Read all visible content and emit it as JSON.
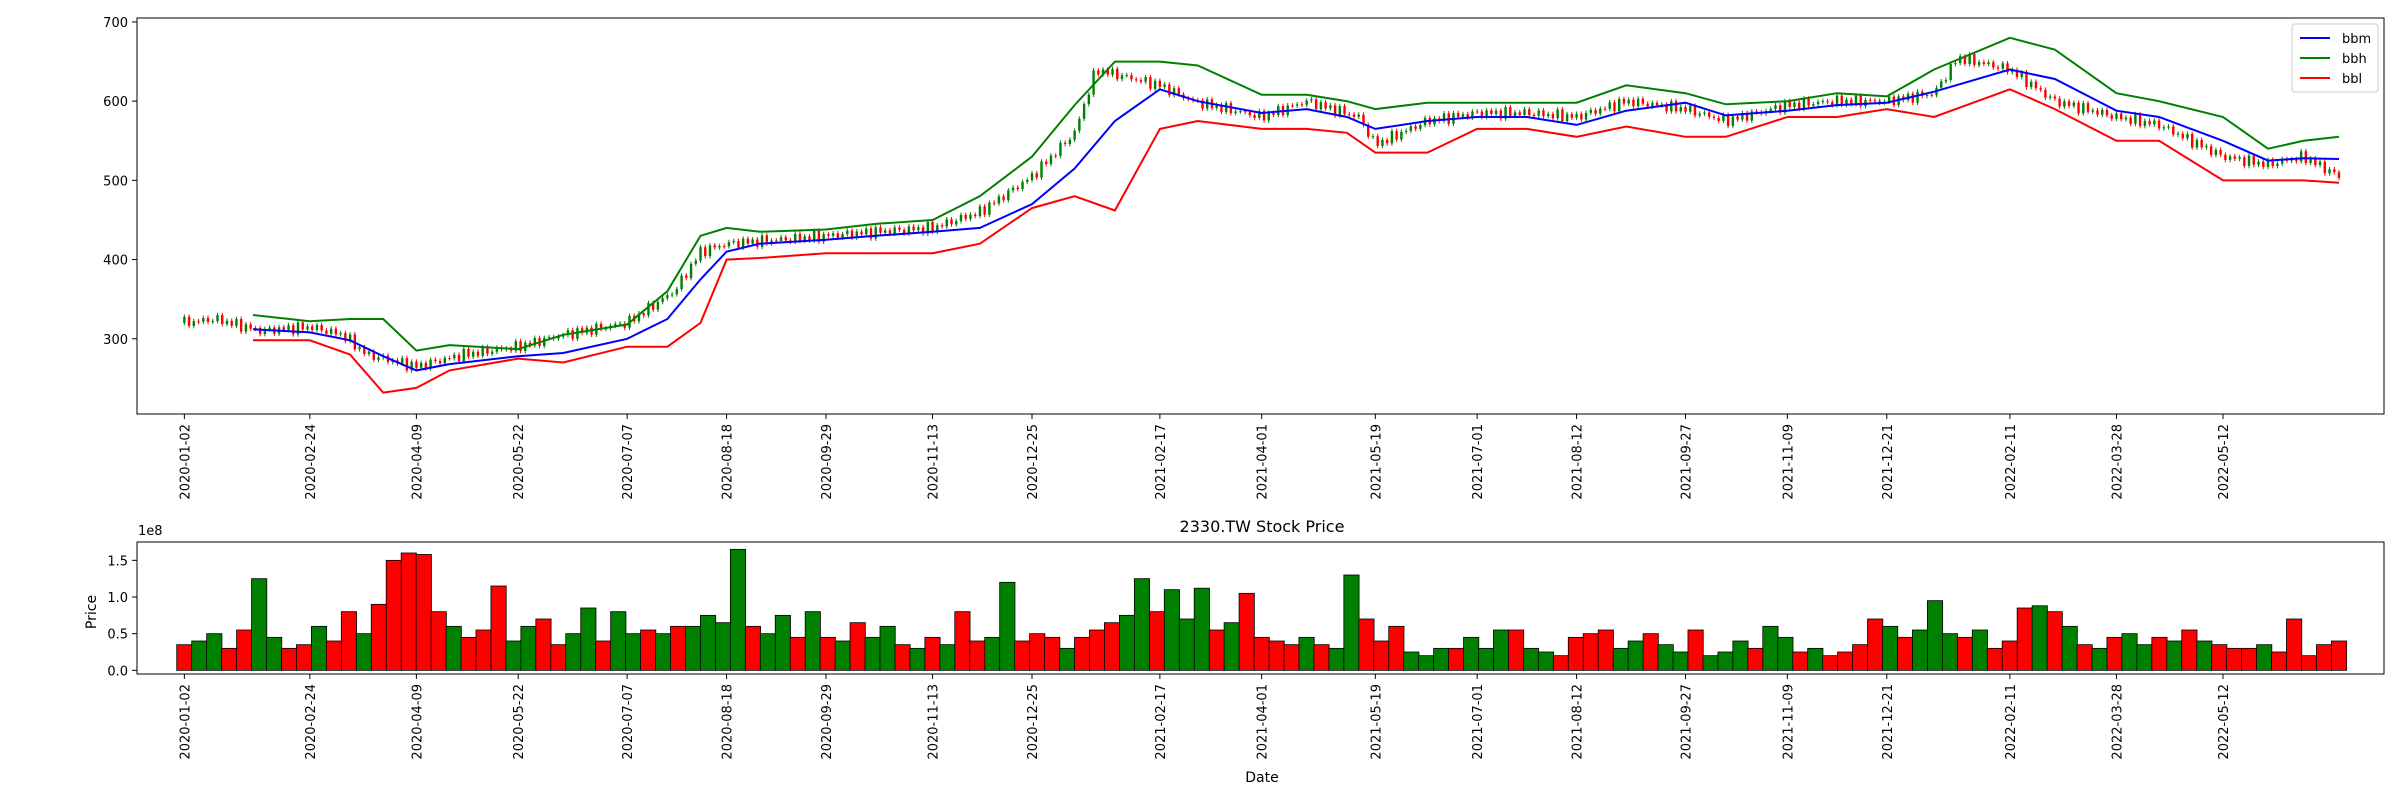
{
  "colors": {
    "bbm": "#0000ff",
    "bbh": "#008000",
    "bbl": "#ff0000",
    "up": "#008000",
    "down": "#ff0000",
    "edge": "#000000"
  },
  "chart_data": [
    {
      "type": "line",
      "title": "",
      "xlabel": "",
      "ylabel": "",
      "xlim": [
        "2019-12-13",
        "2022-07-19"
      ],
      "ylim": [
        205,
        705
      ],
      "yticks": [
        300,
        400,
        500,
        600,
        700
      ],
      "xticks": [
        "2020-01-02",
        "2020-02-24",
        "2020-04-09",
        "2020-05-22",
        "2020-07-07",
        "2020-08-18",
        "2020-09-29",
        "2020-11-13",
        "2020-12-25",
        "2021-02-17",
        "2021-04-01",
        "2021-05-19",
        "2021-07-01",
        "2021-08-12",
        "2021-09-27",
        "2021-11-09",
        "2021-12-21",
        "2022-02-11",
        "2022-03-28",
        "2022-05-12"
      ],
      "legend": {
        "placement": "top-right",
        "entries": [
          "bbm",
          "bbh",
          "bbl"
        ]
      },
      "candlestick_close": {
        "x": [
          "2020-01-02",
          "2020-01-15",
          "2020-02-03",
          "2020-02-24",
          "2020-03-09",
          "2020-03-19",
          "2020-04-09",
          "2020-04-29",
          "2020-05-22",
          "2020-06-10",
          "2020-07-07",
          "2020-07-27",
          "2020-08-07",
          "2020-08-18",
          "2020-09-10",
          "2020-09-29",
          "2020-10-20",
          "2020-11-13",
          "2020-12-03",
          "2020-12-25",
          "2021-01-12",
          "2021-01-21",
          "2021-02-17",
          "2021-03-03",
          "2021-04-01",
          "2021-04-20",
          "2021-05-12",
          "2021-05-19",
          "2021-06-10",
          "2021-07-01",
          "2021-07-22",
          "2021-08-12",
          "2021-09-02",
          "2021-09-27",
          "2021-10-14",
          "2021-11-09",
          "2021-11-30",
          "2021-12-21",
          "2022-01-10",
          "2022-01-20",
          "2022-02-11",
          "2022-03-02",
          "2022-03-28",
          "2022-04-15",
          "2022-05-12",
          "2022-05-31",
          "2022-06-15",
          "2022-06-30"
        ],
        "y": [
          320,
          325,
          310,
          315,
          305,
          280,
          265,
          280,
          290,
          305,
          320,
          360,
          410,
          420,
          425,
          430,
          435,
          440,
          460,
          505,
          560,
          640,
          620,
          600,
          580,
          600,
          580,
          545,
          575,
          585,
          585,
          580,
          600,
          590,
          575,
          595,
          600,
          600,
          610,
          655,
          640,
          600,
          580,
          570,
          530,
          520,
          530,
          505
        ]
      },
      "series": [
        {
          "name": "bbm",
          "x": [
            "2020-01-31",
            "2020-02-24",
            "2020-03-12",
            "2020-03-26",
            "2020-04-09",
            "2020-04-23",
            "2020-05-22",
            "2020-06-10",
            "2020-07-07",
            "2020-07-24",
            "2020-08-07",
            "2020-08-18",
            "2020-09-01",
            "2020-09-29",
            "2020-10-20",
            "2020-11-13",
            "2020-12-03",
            "2020-12-25",
            "2021-01-12",
            "2021-01-29",
            "2021-02-17",
            "2021-03-05",
            "2021-04-01",
            "2021-04-20",
            "2021-05-07",
            "2021-05-19",
            "2021-06-10",
            "2021-07-01",
            "2021-07-22",
            "2021-08-12",
            "2021-09-02",
            "2021-09-27",
            "2021-10-14",
            "2021-11-09",
            "2021-11-30",
            "2021-12-21",
            "2022-01-10",
            "2022-02-11",
            "2022-03-02",
            "2022-03-28",
            "2022-04-15",
            "2022-05-12",
            "2022-05-31",
            "2022-06-15",
            "2022-06-30"
          ],
          "y": [
            312,
            308,
            298,
            278,
            260,
            268,
            278,
            282,
            300,
            325,
            375,
            410,
            420,
            425,
            430,
            435,
            440,
            470,
            515,
            575,
            615,
            600,
            585,
            590,
            580,
            565,
            575,
            580,
            580,
            570,
            588,
            598,
            582,
            588,
            595,
            598,
            612,
            640,
            628,
            588,
            580,
            550,
            525,
            528,
            527
          ]
        },
        {
          "name": "bbh",
          "x": [
            "2020-01-31",
            "2020-02-24",
            "2020-03-12",
            "2020-03-26",
            "2020-04-09",
            "2020-04-23",
            "2020-05-22",
            "2020-06-10",
            "2020-07-07",
            "2020-07-24",
            "2020-08-07",
            "2020-08-18",
            "2020-09-01",
            "2020-09-29",
            "2020-10-20",
            "2020-11-13",
            "2020-12-03",
            "2020-12-25",
            "2021-01-12",
            "2021-01-29",
            "2021-02-17",
            "2021-03-05",
            "2021-04-01",
            "2021-04-20",
            "2021-05-07",
            "2021-05-19",
            "2021-06-10",
            "2021-07-01",
            "2021-07-22",
            "2021-08-12",
            "2021-09-02",
            "2021-09-27",
            "2021-10-14",
            "2021-11-09",
            "2021-11-30",
            "2021-12-21",
            "2022-01-10",
            "2022-02-11",
            "2022-03-02",
            "2022-03-28",
            "2022-04-15",
            "2022-05-12",
            "2022-05-31",
            "2022-06-15",
            "2022-06-30"
          ],
          "y": [
            330,
            322,
            325,
            325,
            285,
            292,
            287,
            305,
            318,
            360,
            430,
            440,
            435,
            438,
            445,
            450,
            480,
            530,
            595,
            650,
            650,
            645,
            608,
            608,
            600,
            590,
            598,
            598,
            598,
            598,
            620,
            610,
            596,
            600,
            610,
            606,
            640,
            680,
            665,
            610,
            600,
            580,
            540,
            550,
            555
          ]
        },
        {
          "name": "bbl",
          "x": [
            "2020-01-31",
            "2020-02-24",
            "2020-03-12",
            "2020-03-26",
            "2020-04-09",
            "2020-04-23",
            "2020-05-22",
            "2020-06-10",
            "2020-07-07",
            "2020-07-24",
            "2020-08-07",
            "2020-08-18",
            "2020-09-01",
            "2020-09-29",
            "2020-10-20",
            "2020-11-13",
            "2020-12-03",
            "2020-12-25",
            "2021-01-12",
            "2021-01-29",
            "2021-02-17",
            "2021-03-05",
            "2021-04-01",
            "2021-04-20",
            "2021-05-07",
            "2021-05-19",
            "2021-06-10",
            "2021-07-01",
            "2021-07-22",
            "2021-08-12",
            "2021-09-02",
            "2021-09-27",
            "2021-10-14",
            "2021-11-09",
            "2021-11-30",
            "2021-12-21",
            "2022-01-10",
            "2022-02-11",
            "2022-03-02",
            "2022-03-28",
            "2022-04-15",
            "2022-05-12",
            "2022-05-31",
            "2022-06-15",
            "2022-06-30"
          ],
          "y": [
            298,
            298,
            280,
            232,
            238,
            260,
            275,
            270,
            290,
            290,
            320,
            400,
            402,
            408,
            408,
            408,
            420,
            465,
            480,
            462,
            565,
            575,
            565,
            565,
            560,
            535,
            535,
            565,
            565,
            555,
            568,
            555,
            555,
            580,
            580,
            590,
            580,
            615,
            590,
            550,
            550,
            500,
            500,
            500,
            497
          ]
        }
      ]
    },
    {
      "type": "bar",
      "title": "2330.TW Stock Price",
      "xlabel": "Date",
      "ylabel": "Price",
      "scale_label": "1e8",
      "ylim": [
        -0.05,
        1.75
      ],
      "yticks": [
        "0.0",
        "0.5",
        "1.0",
        "1.5"
      ],
      "xlim": [
        "2019-12-13",
        "2022-07-19"
      ],
      "xticks": [
        "2020-01-02",
        "2020-02-24",
        "2020-04-09",
        "2020-05-22",
        "2020-07-07",
        "2020-08-18",
        "2020-09-29",
        "2020-11-13",
        "2020-12-25",
        "2021-02-17",
        "2021-04-01",
        "2021-05-19",
        "2021-07-01",
        "2021-08-12",
        "2021-09-27",
        "2021-11-09",
        "2021-12-21",
        "2022-02-11",
        "2022-03-28",
        "2022-05-12"
      ],
      "bars": {
        "start": "2020-01-02",
        "end": "2022-06-30",
        "values": [
          0.35,
          0.4,
          0.5,
          0.3,
          0.55,
          1.25,
          0.45,
          0.3,
          0.35,
          0.6,
          0.4,
          0.8,
          0.5,
          0.9,
          1.5,
          1.6,
          1.58,
          0.8,
          0.6,
          0.45,
          0.55,
          1.15,
          0.4,
          0.6,
          0.7,
          0.35,
          0.5,
          0.85,
          0.4,
          0.8,
          0.5,
          0.55,
          0.5,
          0.6,
          0.6,
          0.75,
          0.65,
          1.65,
          0.6,
          0.5,
          0.75,
          0.45,
          0.8,
          0.45,
          0.4,
          0.65,
          0.45,
          0.6,
          0.35,
          0.3,
          0.45,
          0.35,
          0.8,
          0.4,
          0.45,
          1.2,
          0.4,
          0.5,
          0.45,
          0.3,
          0.45,
          0.55,
          0.65,
          0.75,
          1.25,
          0.8,
          1.1,
          0.7,
          1.12,
          0.55,
          0.65,
          1.05,
          0.45,
          0.4,
          0.35,
          0.45,
          0.35,
          0.3,
          1.3,
          0.7,
          0.4,
          0.6,
          0.25,
          0.2,
          0.3,
          0.3,
          0.45,
          0.3,
          0.55,
          0.55,
          0.3,
          0.25,
          0.2,
          0.45,
          0.5,
          0.55,
          0.3,
          0.4,
          0.5,
          0.35,
          0.25,
          0.55,
          0.2,
          0.25,
          0.4,
          0.3,
          0.6,
          0.45,
          0.25,
          0.3,
          0.2,
          0.25,
          0.35,
          0.7,
          0.6,
          0.45,
          0.55,
          0.95,
          0.5,
          0.45,
          0.55,
          0.3,
          0.4,
          0.85,
          0.88,
          0.8,
          0.6,
          0.35,
          0.3,
          0.45,
          0.5,
          0.35,
          0.45,
          0.4,
          0.55,
          0.4,
          0.35,
          0.3,
          0.3,
          0.35,
          0.25,
          0.7,
          0.2,
          0.35,
          0.4
        ],
        "colors": [
          "down",
          "up",
          "up",
          "down",
          "down",
          "up",
          "up",
          "down",
          "down",
          "up",
          "down",
          "down",
          "up",
          "down",
          "down",
          "down",
          "down",
          "down",
          "up",
          "down",
          "down",
          "down",
          "up",
          "up",
          "down",
          "down",
          "up",
          "up",
          "down",
          "up",
          "up",
          "down",
          "up",
          "down",
          "up",
          "up",
          "up",
          "up",
          "down",
          "up",
          "up",
          "down",
          "up",
          "down",
          "up",
          "down",
          "up",
          "up",
          "down",
          "up",
          "down",
          "up",
          "down",
          "down",
          "up",
          "up",
          "down",
          "down",
          "down",
          "up",
          "down",
          "down",
          "down",
          "up",
          "up",
          "down",
          "up",
          "up",
          "up",
          "down",
          "up",
          "down",
          "down",
          "down",
          "down",
          "up",
          "down",
          "up",
          "up",
          "down",
          "down",
          "down",
          "up",
          "up",
          "up",
          "down",
          "up",
          "up",
          "up",
          "down",
          "up",
          "up",
          "down",
          "down",
          "down",
          "down",
          "up",
          "up",
          "down",
          "up",
          "up",
          "down",
          "up",
          "up",
          "up",
          "down",
          "up",
          "up",
          "down",
          "up",
          "down",
          "down",
          "down",
          "down",
          "up",
          "down",
          "up",
          "up",
          "up",
          "down",
          "up",
          "down",
          "down",
          "down",
          "up",
          "down",
          "up",
          "down",
          "up",
          "down",
          "up",
          "up",
          "down",
          "up",
          "down",
          "up",
          "down",
          "down",
          "down",
          "up",
          "down",
          "down",
          "down",
          "down",
          "down"
        ]
      }
    }
  ]
}
